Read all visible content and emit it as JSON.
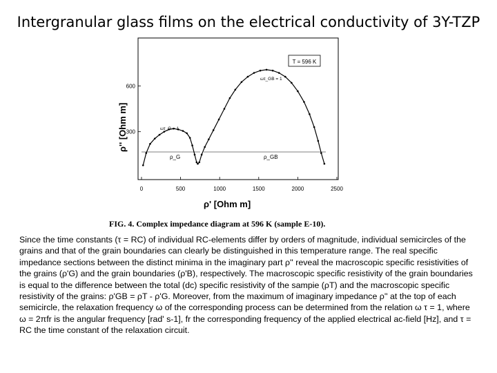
{
  "slide": {
    "title": "Intergranular glass films on the electrical conductivity of 3Y-TZP"
  },
  "figure": {
    "caption": "FIG. 4. Complex impedance diagram at 596 K (sample E-10).",
    "box_label": "T = 596 K",
    "annotations": {
      "tau_g": "ωτ_G = 1",
      "tau_gb": "ωτ_GB = 1",
      "rho_g": "ρ_G",
      "rho_gb": "ρ_GB"
    }
  },
  "chart_data": {
    "type": "scatter",
    "title": "",
    "xlabel": "ρ' [Ohm m]",
    "ylabel": "ρ'' [Ohm m]",
    "xlim": [
      0,
      2500
    ],
    "ylim": [
      0,
      900
    ],
    "xticks": [
      "0",
      "500",
      "1000",
      "1500",
      "2000",
      "2500"
    ],
    "yticks": [
      "300",
      "600"
    ],
    "series": [
      {
        "points": [
          [
            20,
            80
          ],
          [
            60,
            160
          ],
          [
            110,
            220
          ],
          [
            170,
            255
          ],
          [
            230,
            280
          ],
          [
            290,
            300
          ],
          [
            350,
            315
          ],
          [
            410,
            320
          ],
          [
            470,
            315
          ],
          [
            530,
            305
          ],
          [
            580,
            290
          ],
          [
            620,
            260
          ],
          [
            650,
            210
          ],
          [
            680,
            150
          ],
          [
            705,
            100
          ],
          [
            720,
            90
          ],
          [
            740,
            100
          ],
          [
            770,
            150
          ],
          [
            810,
            200
          ],
          [
            860,
            250
          ],
          [
            920,
            310
          ],
          [
            990,
            380
          ],
          [
            1060,
            450
          ],
          [
            1130,
            520
          ],
          [
            1200,
            575
          ],
          [
            1280,
            625
          ],
          [
            1360,
            660
          ],
          [
            1440,
            685
          ],
          [
            1520,
            700
          ],
          [
            1600,
            706
          ],
          [
            1680,
            700
          ],
          [
            1760,
            685
          ],
          [
            1840,
            660
          ],
          [
            1920,
            620
          ],
          [
            2000,
            565
          ],
          [
            2080,
            495
          ],
          [
            2150,
            415
          ],
          [
            2210,
            330
          ],
          [
            2260,
            240
          ],
          [
            2300,
            160
          ],
          [
            2340,
            90
          ]
        ]
      }
    ]
  },
  "body": {
    "paragraph": "Since the time constants (τ = RC) of individual RC-elements differ by orders of magnitude, individual semicircles of the grains and that of the grain boundaries can clearly be distinguished in this temperature range. The real specific impedance sections between the distinct minima in the imaginary part ρ'' reveal the macroscopic specific resistivities of the grains (ρ'G) and the grain boundaries (ρ'B), respectively. The macroscopic specific resistivity of the grain boundaries is equal to the difference between the total (dc) specific resistivity of the sampie (ρT) and the macroscopic specific resistivity of the grains: ρ'GB = ρT - ρ'G. Moreover, from the maximum of imaginary impedance ρ'' at the top of each semicircle, the relaxation frequency ω of the corresponding process can be determined from the relation ω τ = 1, where ω = 2πfr is the angular frequency [rad' s-1], fr the corresponding frequency of the applied electrical ac-field [Hz], and τ = RC the time constant of the relaxation circuit."
  }
}
